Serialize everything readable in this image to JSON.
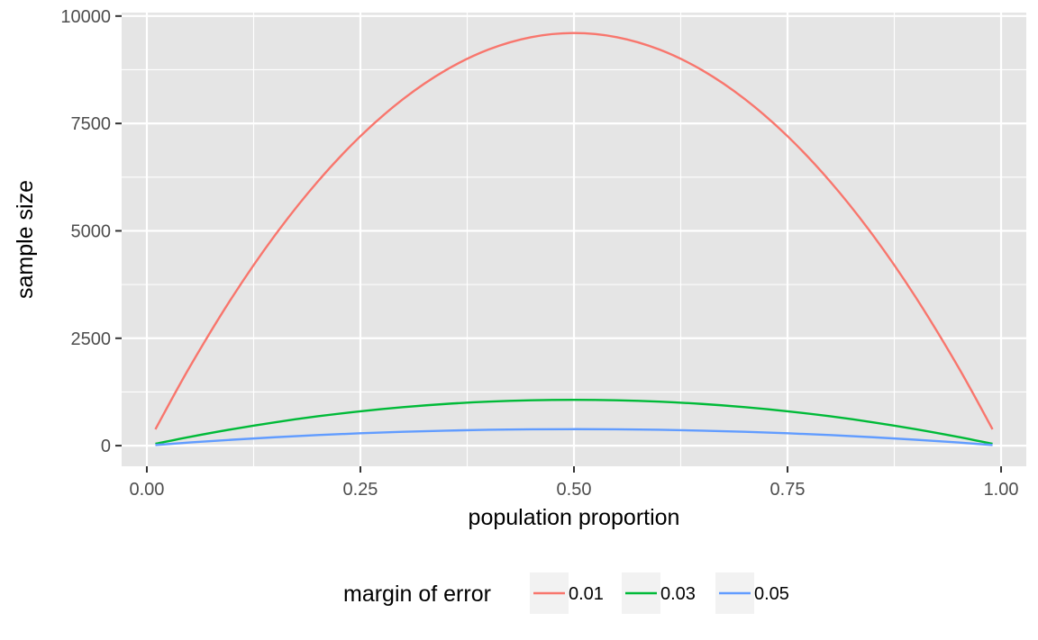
{
  "chart_data": {
    "type": "line",
    "title": "",
    "xlabel": "population proportion",
    "ylabel": "sample size",
    "xlim": [
      -0.0295,
      1.0295
    ],
    "ylim": [
      -480,
      10080
    ],
    "x_ticks": [
      0,
      0.25,
      0.5,
      0.75,
      1
    ],
    "x_tick_labels": [
      "0.00",
      "0.25",
      "0.50",
      "0.75",
      "1.00"
    ],
    "y_ticks": [
      0,
      2500,
      5000,
      7500,
      10000
    ],
    "y_tick_labels": [
      "0",
      "2500",
      "5000",
      "7500",
      "10000"
    ],
    "grid": true,
    "legend_position": "bottom",
    "legend_title": "margin of error",
    "colors": {
      "panel_background": "#e5e5e5",
      "grid": "#ffffff"
    },
    "x": [
      0.01,
      0.05,
      0.1,
      0.15,
      0.2,
      0.25,
      0.3,
      0.35,
      0.4,
      0.45,
      0.5,
      0.55,
      0.6,
      0.65,
      0.7,
      0.75,
      0.8,
      0.85,
      0.9,
      0.95,
      0.99
    ],
    "series": [
      {
        "name": "0.01",
        "color": "#F8766D",
        "values": [
          380,
          1825,
          3457,
          4898,
          6146,
          7203,
          8067,
          8740,
          9220,
          9508,
          9604,
          9508,
          9220,
          8740,
          8067,
          7203,
          6146,
          4898,
          3457,
          1825,
          380
        ]
      },
      {
        "name": "0.03",
        "color": "#00BA38",
        "values": [
          42,
          203,
          384,
          544,
          683,
          800,
          896,
          971,
          1024,
          1056,
          1067,
          1056,
          1024,
          971,
          896,
          800,
          683,
          544,
          384,
          203,
          42
        ]
      },
      {
        "name": "0.05",
        "color": "#619CFF",
        "values": [
          15,
          73,
          138,
          196,
          246,
          288,
          323,
          350,
          369,
          380,
          384,
          380,
          369,
          350,
          323,
          288,
          246,
          196,
          138,
          73,
          15
        ]
      }
    ]
  }
}
